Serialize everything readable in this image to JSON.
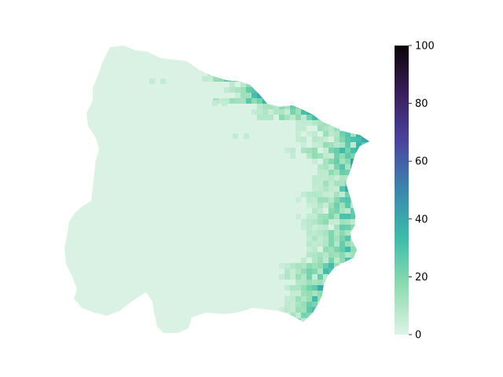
{
  "colorbar": {
    "min": 0,
    "max": 100,
    "ticks": [
      "0",
      "20",
      "40",
      "60",
      "80",
      "100"
    ],
    "colormap": [
      "#ddf3e6",
      "#8fdcb0",
      "#3cbcaa",
      "#3a87ad",
      "#4a45a0",
      "#3a1e5c",
      "#0b0508"
    ]
  },
  "map": {
    "base_color": "#daf2e4",
    "legend_placement": "right"
  }
}
